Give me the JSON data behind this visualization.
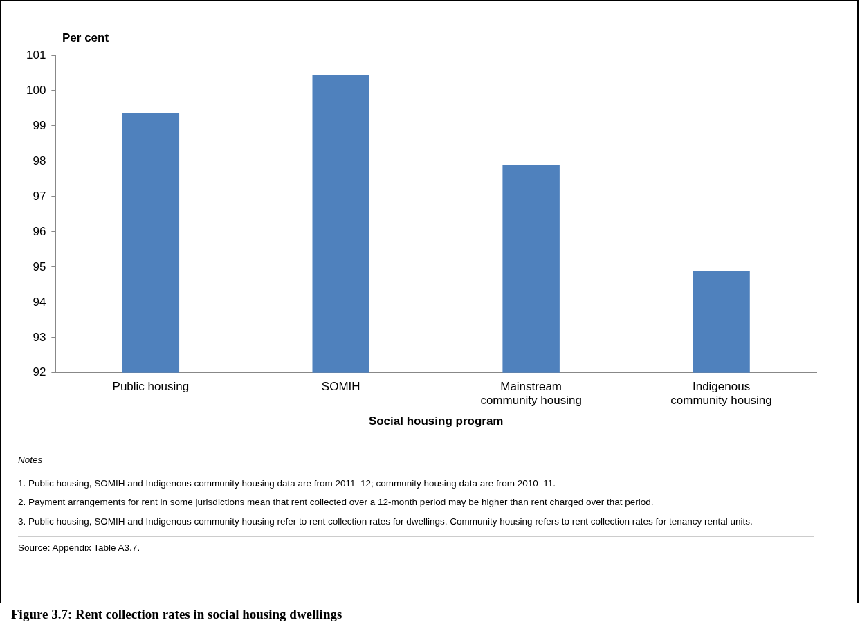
{
  "chart_data": {
    "type": "bar",
    "title": "Figure 3.7: Rent collection rates in social housing dwellings",
    "ylabel": "Per cent",
    "xlabel": "Social housing program",
    "categories": [
      "Public housing",
      "SOMIH",
      "Mainstream community housing",
      "Indigenous community housing"
    ],
    "values": [
      99.35,
      100.45,
      97.9,
      94.9
    ],
    "color": "#4f81bd",
    "ylim": [
      92,
      101
    ],
    "yticks": [
      92,
      93,
      94,
      95,
      96,
      97,
      98,
      99,
      100,
      101
    ],
    "grid": false,
    "legend": false,
    "annotations": [
      "Notes",
      "1.  Public housing, SOMIH and Indigenous community housing data are from 2011–12; community housing data are from 2010–11.",
      "2.  Payment arrangements for rent in some jurisdictions mean that rent collected over a 12-month period may be higher than rent charged over that period.",
      "3.  Public housing, SOMIH and Indigenous community housing refer to rent collection rates for dwellings. Community housing refers to rent collection rates for tenancy rental units.",
      "Source: Appendix Table A3.7."
    ]
  }
}
